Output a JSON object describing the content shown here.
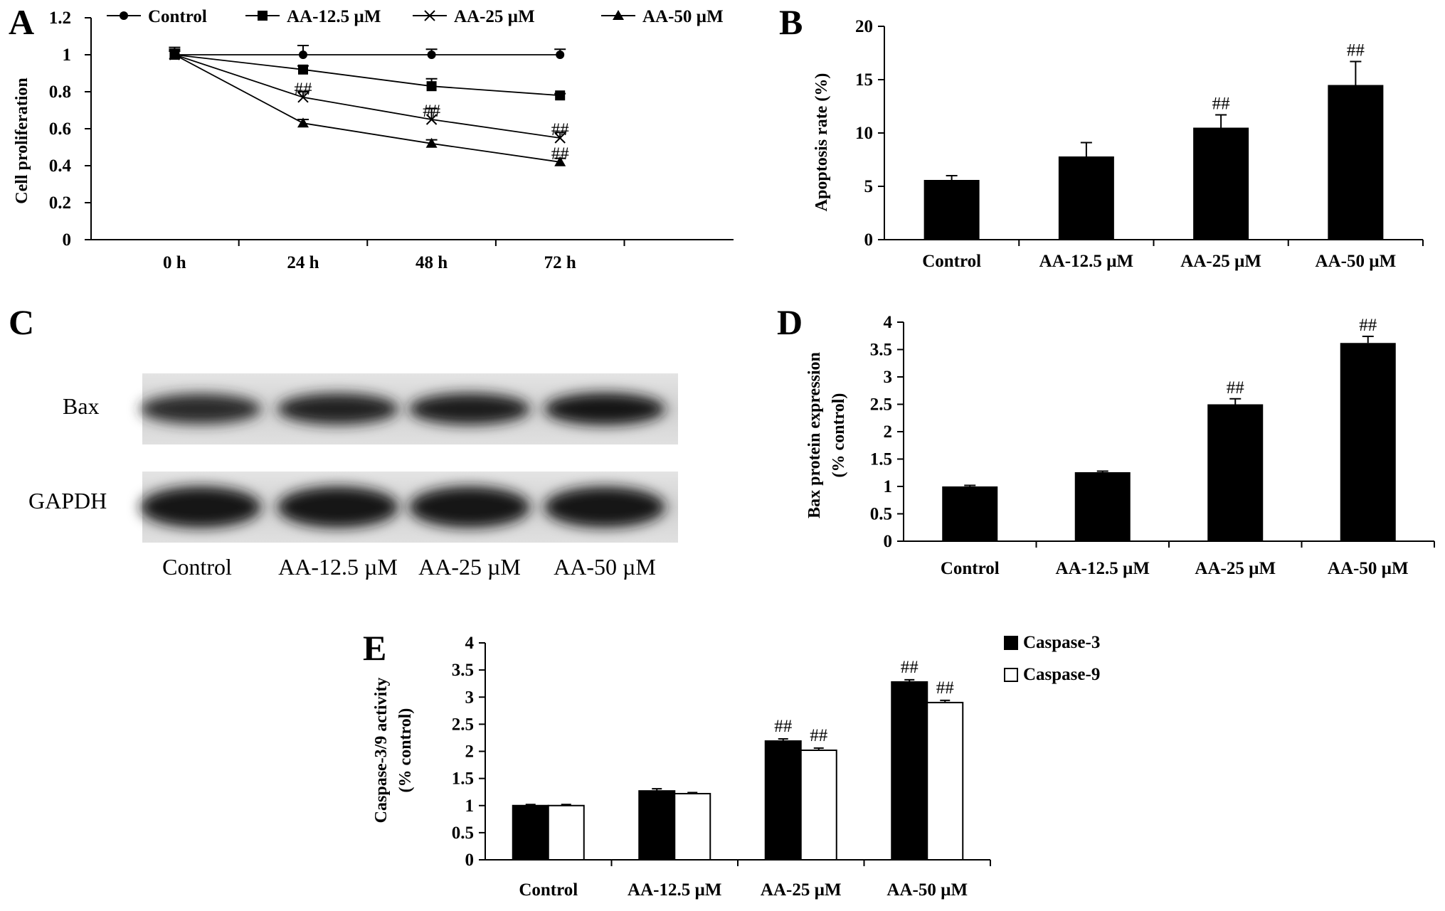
{
  "colors": {
    "bar_fill": "#000000",
    "bar_fill_alt": "#ffffff",
    "axis": "#000000",
    "blot_background": "#d6d6d6",
    "blot_band": "#1a1a1a"
  },
  "chart_data": [
    {
      "panel": "A",
      "type": "line",
      "categories": [
        "0 h",
        "24 h",
        "48 h",
        "72 h"
      ],
      "ylabel": "Cell proliferation",
      "ylim": [
        0,
        1.2
      ],
      "yticks": [
        "0",
        "0.2",
        "0.4",
        "0.6",
        "0.8",
        "1",
        "1.2"
      ],
      "grid": false,
      "legend": "top",
      "series": [
        {
          "name": "Control",
          "marker": "circle",
          "values": [
            1.0,
            1.0,
            1.0,
            1.0
          ],
          "errors": [
            0.04,
            0.05,
            0.03,
            0.03
          ],
          "annotations": [
            "",
            "",
            "",
            ""
          ]
        },
        {
          "name": "AA-12.5 µM",
          "marker": "square",
          "values": [
            1.0,
            0.92,
            0.83,
            0.78
          ],
          "errors": [
            0.03,
            0.02,
            0.04,
            0.01
          ],
          "annotations": [
            "",
            "",
            "",
            ""
          ]
        },
        {
          "name": "AA-25 µM",
          "marker": "cross",
          "values": [
            1.0,
            0.77,
            0.65,
            0.55
          ],
          "errors": [
            0.02,
            0.03,
            0.06,
            0.03
          ],
          "annotations": [
            "",
            "##",
            "##",
            "##"
          ]
        },
        {
          "name": "AA-50 µM",
          "marker": "triangle",
          "values": [
            1.0,
            0.63,
            0.52,
            0.42
          ],
          "errors": [
            0.02,
            0.02,
            0.02,
            0.02
          ],
          "annotations": [
            "",
            "",
            "",
            "##"
          ]
        }
      ]
    },
    {
      "panel": "B",
      "type": "bar",
      "categories": [
        "Control",
        "AA-12.5 µM",
        "AA-25 µM",
        "AA-50 µM"
      ],
      "values": [
        5.6,
        7.8,
        10.5,
        14.5
      ],
      "errors": [
        0.4,
        1.3,
        1.2,
        2.2
      ],
      "annotations": [
        "",
        "",
        "##",
        "##"
      ],
      "ylabel": "Apoptosis rate (%)",
      "ylim": [
        0,
        20
      ],
      "yticks": [
        "0",
        "5",
        "10",
        "15",
        "20"
      ]
    },
    {
      "panel": "D",
      "type": "bar",
      "categories": [
        "Control",
        "AA-12.5 µM",
        "AA-25 µM",
        "AA-50 µM"
      ],
      "values": [
        1.0,
        1.26,
        2.5,
        3.62
      ],
      "errors": [
        0.02,
        0.02,
        0.1,
        0.12
      ],
      "annotations": [
        "",
        "",
        "##",
        "##"
      ],
      "ylabel_lines": [
        "Bax protein expression",
        "(% control)"
      ],
      "ylim": [
        0,
        4
      ],
      "yticks": [
        "0",
        "0.5",
        "1",
        "1.5",
        "2",
        "2.5",
        "3",
        "3.5",
        "4"
      ]
    },
    {
      "panel": "E",
      "type": "bar",
      "categories": [
        "Control",
        "AA-12.5 µM",
        "AA-25 µM",
        "AA-50 µM"
      ],
      "ylabel_lines": [
        "Caspase-3/9 activity",
        "(% control)"
      ],
      "ylim": [
        0,
        4
      ],
      "yticks": [
        "0",
        "0.5",
        "1",
        "1.5",
        "2",
        "2.5",
        "3",
        "3.5",
        "4"
      ],
      "legend": "top-right",
      "series": [
        {
          "name": "Caspase-3",
          "fill": "#000000",
          "values": [
            1.0,
            1.27,
            2.19,
            3.28
          ],
          "errors": [
            0.02,
            0.04,
            0.04,
            0.04
          ],
          "annotations": [
            "",
            "",
            "##",
            "##"
          ]
        },
        {
          "name": "Caspase-9",
          "fill": "#ffffff",
          "values": [
            1.0,
            1.22,
            2.02,
            2.9
          ],
          "errors": [
            0.02,
            0.02,
            0.04,
            0.04
          ],
          "annotations": [
            "",
            "",
            "##",
            "##"
          ]
        }
      ]
    }
  ],
  "panel_c": {
    "panel": "C",
    "rows": [
      "Bax",
      "GAPDH"
    ],
    "lanes": [
      "Control",
      "AA-12.5 µM",
      "AA-25 µM",
      "AA-50 µM"
    ],
    "band_intensity": {
      "Bax": [
        0.7,
        0.82,
        0.85,
        0.95
      ],
      "GAPDH": [
        1.0,
        1.0,
        1.0,
        0.95
      ]
    }
  }
}
